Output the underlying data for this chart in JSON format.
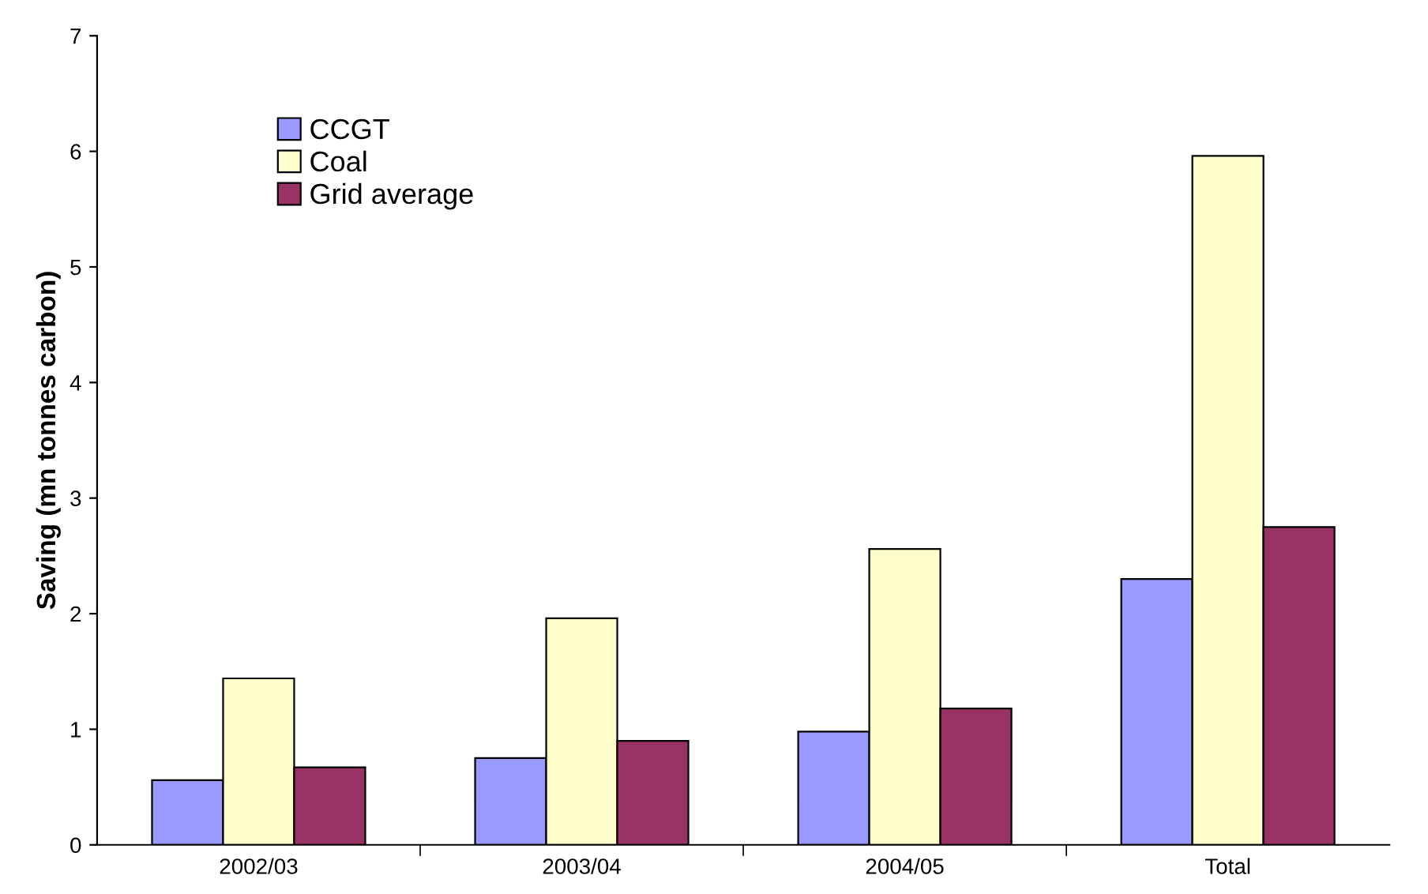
{
  "chart_data": {
    "type": "bar",
    "ylabel": "Saving (mn tonnes carbon)",
    "categories": [
      "2002/03",
      "2003/04",
      "2004/05",
      "Total"
    ],
    "series": [
      {
        "name": "CCGT",
        "color": "#9999ff",
        "values": [
          0.56,
          0.75,
          0.98,
          2.3
        ]
      },
      {
        "name": "Coal",
        "color": "#ffffcc",
        "values": [
          1.44,
          1.96,
          2.56,
          5.96
        ]
      },
      {
        "name": "Grid average",
        "color": "#993366",
        "values": [
          0.67,
          0.9,
          1.18,
          2.75
        ]
      }
    ],
    "ylim": [
      0,
      7
    ],
    "yticks": [
      0,
      1,
      2,
      3,
      4,
      5,
      6,
      7
    ],
    "grid": false,
    "legend": "top left"
  }
}
